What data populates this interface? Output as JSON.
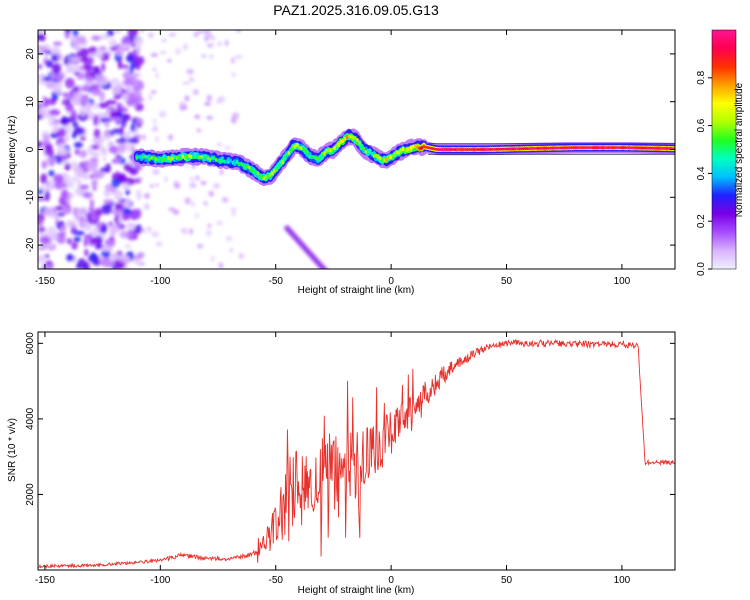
{
  "title": "PAZ1.2025.316.09.05.G13",
  "chart_data": [
    {
      "type": "heatmap",
      "name": "spectrogram",
      "xlabel": "Height of straight line (km)",
      "ylabel": "Frequency (Hz)",
      "xlim": [
        -153,
        123
      ],
      "ylim": [
        -25,
        25
      ],
      "xticks": [
        -150,
        -100,
        -50,
        0,
        50,
        100
      ],
      "yticks": [
        -20,
        -10,
        0,
        10,
        20
      ],
      "ridge": {
        "x": [
          -110,
          -105,
          -100,
          -95,
          -90,
          -85,
          -80,
          -75,
          -70,
          -65,
          -60,
          -55,
          -52,
          -48,
          -45,
          -42,
          -38,
          -35,
          -32,
          -28,
          -25,
          -22,
          -18,
          -15,
          -12,
          -8,
          -5,
          -2,
          2,
          6,
          10,
          15,
          20,
          40,
          60,
          80,
          100,
          122
        ],
        "freq": [
          -1.5,
          -1.8,
          -2,
          -1.8,
          -1.6,
          -1.5,
          -1.7,
          -2.2,
          -2.5,
          -3,
          -4.5,
          -6,
          -5.5,
          -3,
          -1,
          1,
          0,
          -1.5,
          -2,
          -0.5,
          0,
          1.5,
          3,
          2,
          0,
          -1,
          -2,
          -2.3,
          -1,
          0,
          0.5,
          0.5,
          0,
          0,
          0.2,
          0.4,
          0.4,
          0.2
        ],
        "amplitude": [
          0.45,
          0.5,
          0.55,
          0.55,
          0.6,
          0.55,
          0.5,
          0.5,
          0.45,
          0.5,
          0.55,
          0.6,
          0.6,
          0.55,
          0.55,
          0.6,
          0.55,
          0.5,
          0.55,
          0.6,
          0.65,
          0.7,
          0.75,
          0.65,
          0.55,
          0.5,
          0.6,
          0.7,
          0.6,
          0.65,
          0.75,
          0.9,
          0.95,
          0.95,
          0.95,
          0.95,
          0.95,
          0.95
        ]
      },
      "colorbar": {
        "label": "Normalized spectral amplitude",
        "range": [
          0,
          1
        ],
        "ticks": [
          "0.0",
          "0.2",
          "0.4",
          "0.6",
          "0.8"
        ],
        "tick_values": [
          0,
          0.2,
          0.4,
          0.6,
          0.8
        ],
        "colors": [
          "#f0f0ff",
          "#d9b3ff",
          "#a64dff",
          "#7a00e6",
          "#2020ff",
          "#00c0ff",
          "#00ffc0",
          "#20ff20",
          "#b0ff00",
          "#ffff00",
          "#ffa000",
          "#ff3000",
          "#ff0050",
          "#ff1493"
        ]
      }
    },
    {
      "type": "line",
      "name": "snr",
      "xlabel": "Height of straight line (km)",
      "ylabel": "SNR (10 * v/v)",
      "xlim": [
        -153,
        123
      ],
      "ylim": [
        0,
        6300
      ],
      "xticks": [
        -150,
        -100,
        -50,
        0,
        50,
        100
      ],
      "yticks": [
        2000,
        4000,
        6000
      ],
      "color": "#e8312c",
      "series": [
        {
          "name": "SNR",
          "x": [
            -153,
            -130,
            -110,
            -100,
            -90,
            -80,
            -70,
            -60,
            -56,
            -52,
            -48,
            -45,
            -40,
            -35,
            -30,
            -25,
            -20,
            -15,
            -10,
            -5,
            0,
            5,
            10,
            15,
            20,
            25,
            30,
            35,
            40,
            45,
            50,
            60,
            70,
            80,
            90,
            100,
            105,
            107,
            110,
            115,
            123
          ],
          "y": [
            100,
            120,
            200,
            250,
            400,
            300,
            300,
            400,
            600,
            900,
            1500,
            2000,
            2200,
            2400,
            2500,
            2600,
            2700,
            2900,
            3100,
            3300,
            3600,
            3900,
            4200,
            4600,
            5000,
            5300,
            5500,
            5700,
            5850,
            5950,
            6000,
            6000,
            6000,
            5980,
            5980,
            5980,
            5950,
            5950,
            2850,
            2850,
            2850
          ],
          "noise": [
            40,
            40,
            40,
            50,
            60,
            50,
            50,
            60,
            200,
            500,
            900,
            1000,
            1100,
            1100,
            1100,
            1100,
            1000,
            900,
            800,
            700,
            600,
            550,
            500,
            400,
            300,
            200,
            150,
            120,
            100,
            90,
            90,
            90,
            90,
            90,
            90,
            90,
            90,
            60,
            60,
            60,
            60
          ]
        }
      ]
    }
  ]
}
